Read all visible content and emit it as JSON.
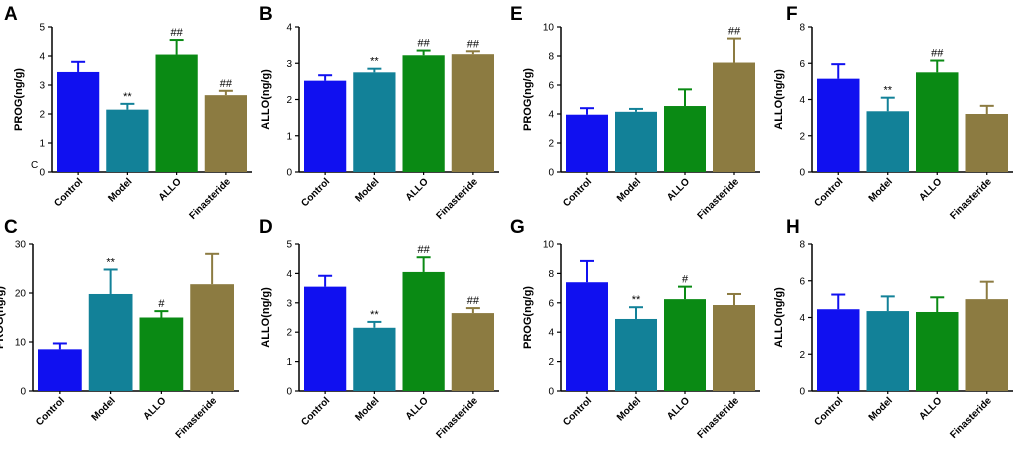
{
  "figure": {
    "stray_text": "C",
    "colors": {
      "Control": "#1010f0",
      "Model": "#128198",
      "ALLO": "#0a8a14",
      "Finasteride": "#8c7b41"
    }
  },
  "chart_data": [
    {
      "panel": "A",
      "type": "bar",
      "ylabel": "PROG(ng/g)",
      "ylim": [
        0,
        5
      ],
      "yticks": [
        0,
        1,
        2,
        3,
        4,
        5
      ],
      "categories": [
        "Control",
        "Model",
        "ALLO",
        "Finasteride"
      ],
      "values": [
        3.45,
        2.15,
        4.05,
        2.65
      ],
      "errors": [
        0.35,
        0.2,
        0.5,
        0.15
      ],
      "annotations": [
        "",
        "**",
        "##",
        "##"
      ]
    },
    {
      "panel": "B",
      "type": "bar",
      "ylabel": "ALLO(ng/g)",
      "ylim": [
        0,
        4
      ],
      "yticks": [
        0,
        1,
        2,
        3,
        4
      ],
      "categories": [
        "Control",
        "Model",
        "ALLO",
        "Finasteride"
      ],
      "values": [
        2.52,
        2.75,
        3.22,
        3.25
      ],
      "errors": [
        0.15,
        0.1,
        0.13,
        0.08
      ],
      "annotations": [
        "",
        "**",
        "##",
        "##"
      ]
    },
    {
      "panel": "C",
      "type": "bar",
      "ylabel": "PROG(ng/g)",
      "ylim": [
        0,
        30
      ],
      "yticks": [
        0,
        10,
        20,
        30
      ],
      "categories": [
        "Control",
        "Model",
        "ALLO",
        "Finasteride"
      ],
      "values": [
        8.5,
        19.8,
        15.0,
        21.8
      ],
      "errors": [
        1.2,
        5.0,
        1.3,
        6.2
      ],
      "annotations": [
        "",
        "**",
        "#",
        ""
      ]
    },
    {
      "panel": "D",
      "type": "bar",
      "ylabel": "ALLO(ng/g)",
      "ylim": [
        0,
        5
      ],
      "yticks": [
        0,
        1,
        2,
        3,
        4,
        5
      ],
      "categories": [
        "Control",
        "Model",
        "ALLO",
        "Finasteride"
      ],
      "values": [
        3.55,
        2.15,
        4.05,
        2.65
      ],
      "errors": [
        0.37,
        0.2,
        0.5,
        0.17
      ],
      "annotations": [
        "",
        "**",
        "##",
        "##"
      ]
    },
    {
      "panel": "E",
      "type": "bar",
      "ylabel": "PROG(ng/g)",
      "ylim": [
        0,
        10
      ],
      "yticks": [
        0,
        2,
        4,
        6,
        8,
        10
      ],
      "categories": [
        "Control",
        "Model",
        "ALLO",
        "Finasteride"
      ],
      "values": [
        3.95,
        4.15,
        4.55,
        7.55
      ],
      "errors": [
        0.45,
        0.2,
        1.15,
        1.65
      ],
      "annotations": [
        "",
        "",
        "",
        "##"
      ]
    },
    {
      "panel": "F",
      "type": "bar",
      "ylabel": "ALLO(ng/g)",
      "ylim": [
        0,
        8
      ],
      "yticks": [
        0,
        2,
        4,
        6,
        8
      ],
      "categories": [
        "Control",
        "Model",
        "ALLO",
        "Finasteride"
      ],
      "values": [
        5.15,
        3.35,
        5.5,
        3.2
      ],
      "errors": [
        0.8,
        0.75,
        0.65,
        0.45
      ],
      "annotations": [
        "",
        "**",
        "##",
        ""
      ]
    },
    {
      "panel": "G",
      "type": "bar",
      "ylabel": "PROG(ng/g)",
      "ylim": [
        0,
        10
      ],
      "yticks": [
        0,
        2,
        4,
        6,
        8,
        10
      ],
      "categories": [
        "Control",
        "Model",
        "ALLO",
        "Finasteride"
      ],
      "values": [
        7.4,
        4.9,
        6.25,
        5.85
      ],
      "errors": [
        1.45,
        0.8,
        0.85,
        0.75
      ],
      "annotations": [
        "",
        "**",
        "#",
        ""
      ]
    },
    {
      "panel": "H",
      "type": "bar",
      "ylabel": "ALLO(ng/g)",
      "ylim": [
        0,
        8
      ],
      "yticks": [
        0,
        2,
        4,
        6,
        8
      ],
      "categories": [
        "Control",
        "Model",
        "ALLO",
        "Finasteride"
      ],
      "values": [
        4.45,
        4.35,
        4.3,
        5.0
      ],
      "errors": [
        0.8,
        0.8,
        0.8,
        0.95
      ],
      "annotations": [
        "",
        "",
        "",
        ""
      ]
    }
  ]
}
